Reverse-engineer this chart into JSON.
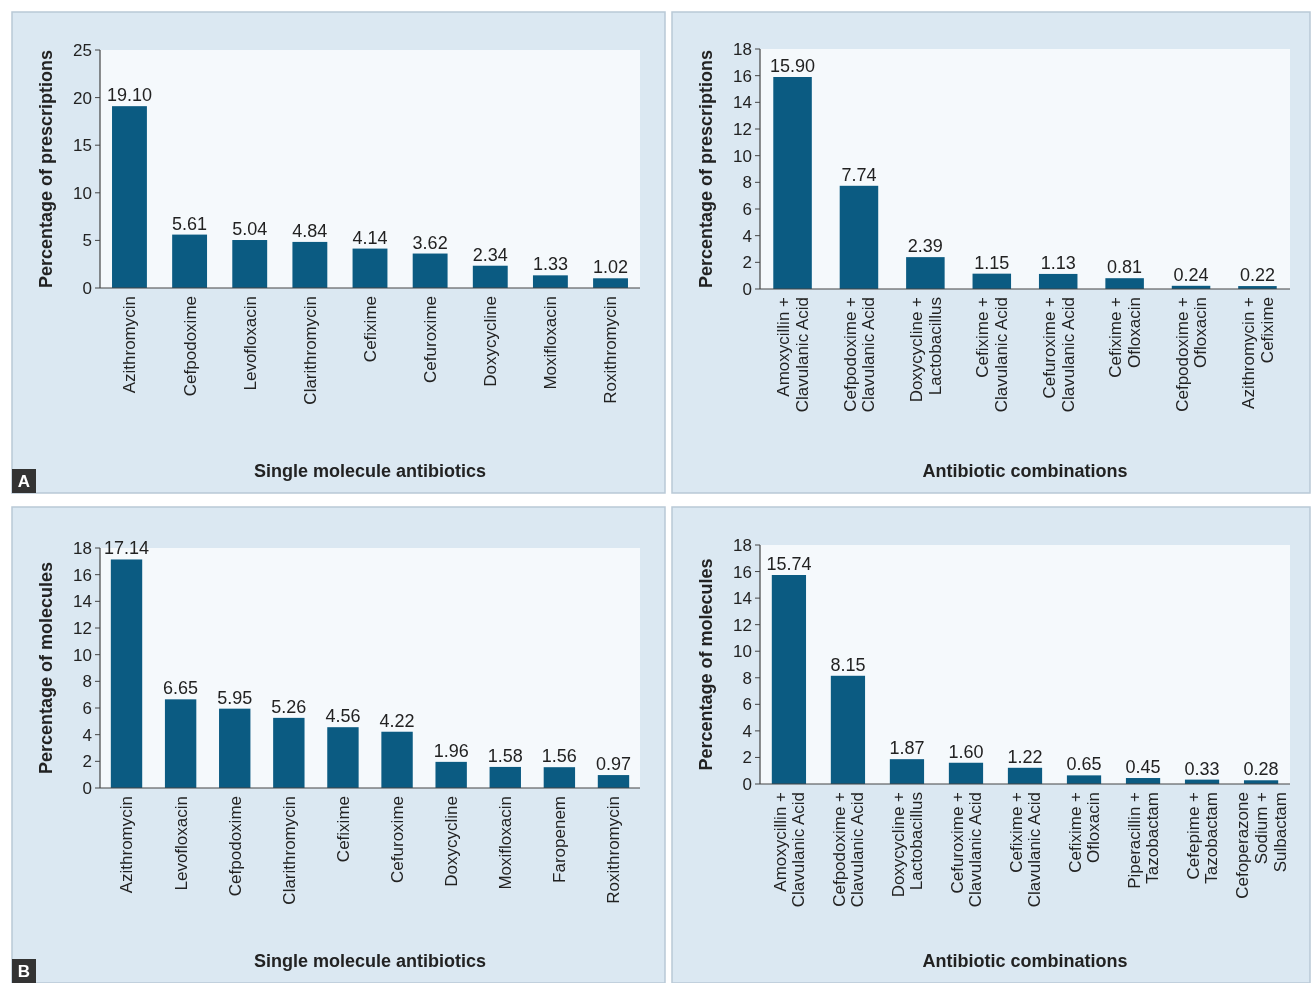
{
  "chart_data": [
    {
      "type": "bar",
      "ylabel": "Percentage of prescriptions",
      "xlabel": "Single molecule antibiotics",
      "annotations": [
        "A"
      ],
      "categories": [
        "Azithromycin",
        "Cefpodoxime",
        "Levofloxacin",
        "Clarithromycin",
        "Cefixime",
        "Cefuroxime",
        "Doxycycline",
        "Moxifloxacin",
        "Roxithromycin"
      ],
      "values": [
        19.1,
        5.61,
        5.04,
        4.84,
        4.14,
        3.62,
        2.34,
        1.33,
        1.02
      ],
      "value_labels": [
        "19.10",
        "5.61",
        "5.04",
        "4.84",
        "4.14",
        "3.62",
        "2.34",
        "1.33",
        "1.02"
      ],
      "color": "#0b5b82",
      "ylim": [
        0,
        25
      ],
      "yticks": [
        0,
        5,
        10,
        15,
        20,
        25
      ],
      "grid": false
    },
    {
      "type": "bar",
      "ylabel": "Percentage of prescriptions",
      "xlabel": "Antibiotic combinations",
      "categories": [
        "Amoxycillin +\nClavulanic Acid",
        "Cefpodoxime +\nClavulanic Acid",
        "Doxycycline +\nLactobacillus",
        "Cefixime +\nClavulanic Acid",
        "Cefuroxime +\nClavulanic Acid",
        "Cefixime +\nOfloxacin",
        "Cefpodoxime +\nOfloxacin",
        "Azithromycin +\nCefixime"
      ],
      "values": [
        15.9,
        7.74,
        2.39,
        1.15,
        1.13,
        0.81,
        0.24,
        0.22
      ],
      "value_labels": [
        "15.90",
        "7.74",
        "2.39",
        "1.15",
        "1.13",
        "0.81",
        "0.24",
        "0.22"
      ],
      "color": "#0b5b82",
      "ylim": [
        0,
        18
      ],
      "yticks": [
        0,
        2,
        4,
        6,
        8,
        10,
        12,
        14,
        16,
        18
      ],
      "grid": false
    },
    {
      "type": "bar",
      "ylabel": "Percentage of molecules",
      "xlabel": "Single molecule antibiotics",
      "annotations": [
        "B"
      ],
      "categories": [
        "Azithromycin",
        "Levofloxacin",
        "Cefpodoxime",
        "Clarithromycin",
        "Cefixime",
        "Cefuroxime",
        "Doxycycline",
        "Moxifloxacin",
        "Faropenem",
        "Roxithromycin"
      ],
      "values": [
        17.14,
        6.65,
        5.95,
        5.26,
        4.56,
        4.22,
        1.96,
        1.58,
        1.56,
        0.97
      ],
      "value_labels": [
        "17.14",
        "6.65",
        "5.95",
        "5.26",
        "4.56",
        "4.22",
        "1.96",
        "1.58",
        "1.56",
        "0.97"
      ],
      "color": "#0b5b82",
      "ylim": [
        0,
        18
      ],
      "yticks": [
        0,
        2,
        4,
        6,
        8,
        10,
        12,
        14,
        16,
        18
      ],
      "grid": false
    },
    {
      "type": "bar",
      "ylabel": "Percentage of molecules",
      "xlabel": "Antibiotic combinations",
      "categories": [
        "Amoxycillin +\nClavulanic Acid",
        "Cefpodoxime +\nClavulanic Acid",
        "Doxycycline +\nLactobacillus",
        "Cefuroxime +\nClavulanic Acid",
        "Cefixime +\nClavulanic Acid",
        "Cefixime +\nOfloxacin",
        "Piperacillin +\nTazobactam",
        "Cefepime +\nTazobactam",
        "Cefoperazone\nSodium +\nSulbactam"
      ],
      "values": [
        15.74,
        8.15,
        1.87,
        1.6,
        1.22,
        0.65,
        0.45,
        0.33,
        0.28
      ],
      "value_labels": [
        "15.74",
        "8.15",
        "1.87",
        "1.60",
        "1.22",
        "0.65",
        "0.45",
        "0.33",
        "0.28"
      ],
      "color": "#0b5b82",
      "ylim": [
        0,
        18
      ],
      "yticks": [
        0,
        2,
        4,
        6,
        8,
        10,
        12,
        14,
        16,
        18
      ],
      "grid": false
    }
  ]
}
